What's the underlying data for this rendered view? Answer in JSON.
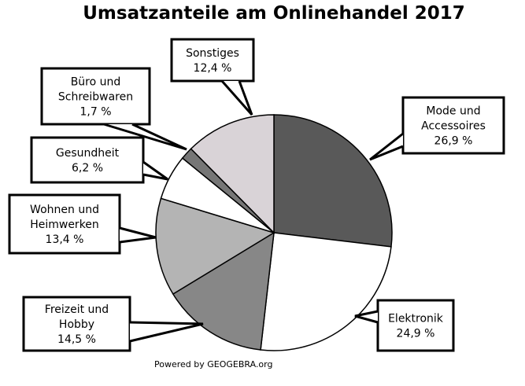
{
  "chart_data": {
    "type": "pie",
    "title": "Umsatzanteile am Onlinehandel 2017",
    "start": "top",
    "direction": "clockwise",
    "slices": [
      {
        "label_lines": [
          "Mode und",
          "Accessoires"
        ],
        "value": 26.9,
        "value_label": "26,9 %",
        "color": "#595959"
      },
      {
        "label_lines": [
          "Elektronik"
        ],
        "value": 24.9,
        "value_label": "24,9 %",
        "color": "#ffffff"
      },
      {
        "label_lines": [
          "Freizeit und",
          "Hobby"
        ],
        "value": 14.5,
        "value_label": "14,5 %",
        "color": "#878787"
      },
      {
        "label_lines": [
          "Wohnen und",
          "Heimwerken"
        ],
        "value": 13.4,
        "value_label": "13,4 %",
        "color": "#b4b4b4"
      },
      {
        "label_lines": [
          "Gesundheit"
        ],
        "value": 6.2,
        "value_label": "6,2 %",
        "color": "#ffffff"
      },
      {
        "label_lines": [
          "Büro und",
          "Schreibwaren"
        ],
        "value": 1.7,
        "value_label": "1,7 %",
        "color": "#767676"
      },
      {
        "label_lines": [
          "Sonstiges"
        ],
        "value": 12.4,
        "value_label": "12,4 %",
        "color": "#d9d3d7"
      }
    ]
  },
  "footer": "Powered by GEOGEBRA.org"
}
